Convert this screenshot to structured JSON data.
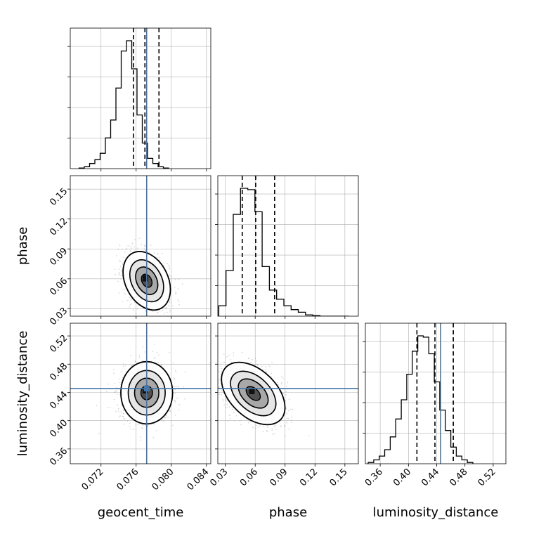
{
  "chart_data": {
    "type": "corner",
    "grid": true,
    "parameters": [
      {
        "name": "geocent_time",
        "truth": 0.0772,
        "range": [
          0.0685,
          0.0845
        ],
        "ticks": [
          "0.072",
          "0.076",
          "0.080",
          "0.084"
        ],
        "tick_values": [
          0.072,
          0.076,
          0.08,
          0.084
        ],
        "quantiles": [
          0.0757,
          0.077,
          0.0786
        ],
        "histogram": {
          "bin_start": 0.0695,
          "bin_width": 0.0006,
          "counts": [
            0.5,
            1.5,
            4,
            7,
            12,
            24,
            38,
            63,
            92,
            100,
            78,
            42,
            20,
            8,
            4,
            1.5,
            0.5
          ]
        }
      },
      {
        "name": "phase",
        "truth": null,
        "range": [
          0.0225,
          0.1635
        ],
        "ticks": [
          "0.03",
          "0.06",
          "0.09",
          "0.12",
          "0.15"
        ],
        "tick_values": [
          0.03,
          0.06,
          0.09,
          0.12,
          0.15
        ],
        "quantiles": [
          0.047,
          0.0605,
          0.0795
        ],
        "histogram": {
          "bin_start": 0.0235,
          "bin_width": 0.00725,
          "counts": [
            8,
            35,
            78,
            98,
            97,
            80,
            38,
            20,
            13,
            8,
            5,
            3,
            1,
            0.5,
            0,
            0,
            0,
            0
          ]
        }
      },
      {
        "name": "luminosity_distance",
        "truth": 0.4455,
        "range": [
          0.339,
          0.538
        ],
        "ticks": [
          "0.36",
          "0.40",
          "0.44",
          "0.48",
          "0.52"
        ],
        "tick_values": [
          0.36,
          0.4,
          0.44,
          0.48,
          0.52
        ],
        "quantiles": [
          0.412,
          0.4375,
          0.4635
        ],
        "histogram": {
          "bin_start": 0.343,
          "bin_width": 0.0078,
          "counts": [
            1,
            3,
            6,
            11,
            21,
            35,
            50,
            70,
            88,
            100,
            99,
            86,
            64,
            42,
            26,
            13,
            6,
            3,
            1
          ]
        }
      }
    ],
    "pairs": [
      {
        "x": "geocent_time",
        "y": "phase",
        "mean": [
          0.0772,
          0.058
        ],
        "sigma": [
          0.0011,
          0.012
        ],
        "rho": -0.3,
        "truth_lines": [
          "x"
        ]
      },
      {
        "x": "geocent_time",
        "y": "luminosity_distance",
        "mean": [
          0.0772,
          0.4395
        ],
        "sigma": [
          0.0012,
          0.018
        ],
        "rho": 0.0,
        "truth_lines": [
          "x",
          "y"
        ]
      },
      {
        "x": "phase",
        "y": "luminosity_distance",
        "mean": [
          0.058,
          0.4385
        ],
        "sigma": [
          0.013,
          0.018
        ],
        "rho": -0.45,
        "truth_lines": [
          "y"
        ]
      }
    ],
    "colors": {
      "truth": "#4477aa",
      "hist": "#000000",
      "grid": "#b0b0b0",
      "points": "#7f7f7f"
    }
  }
}
